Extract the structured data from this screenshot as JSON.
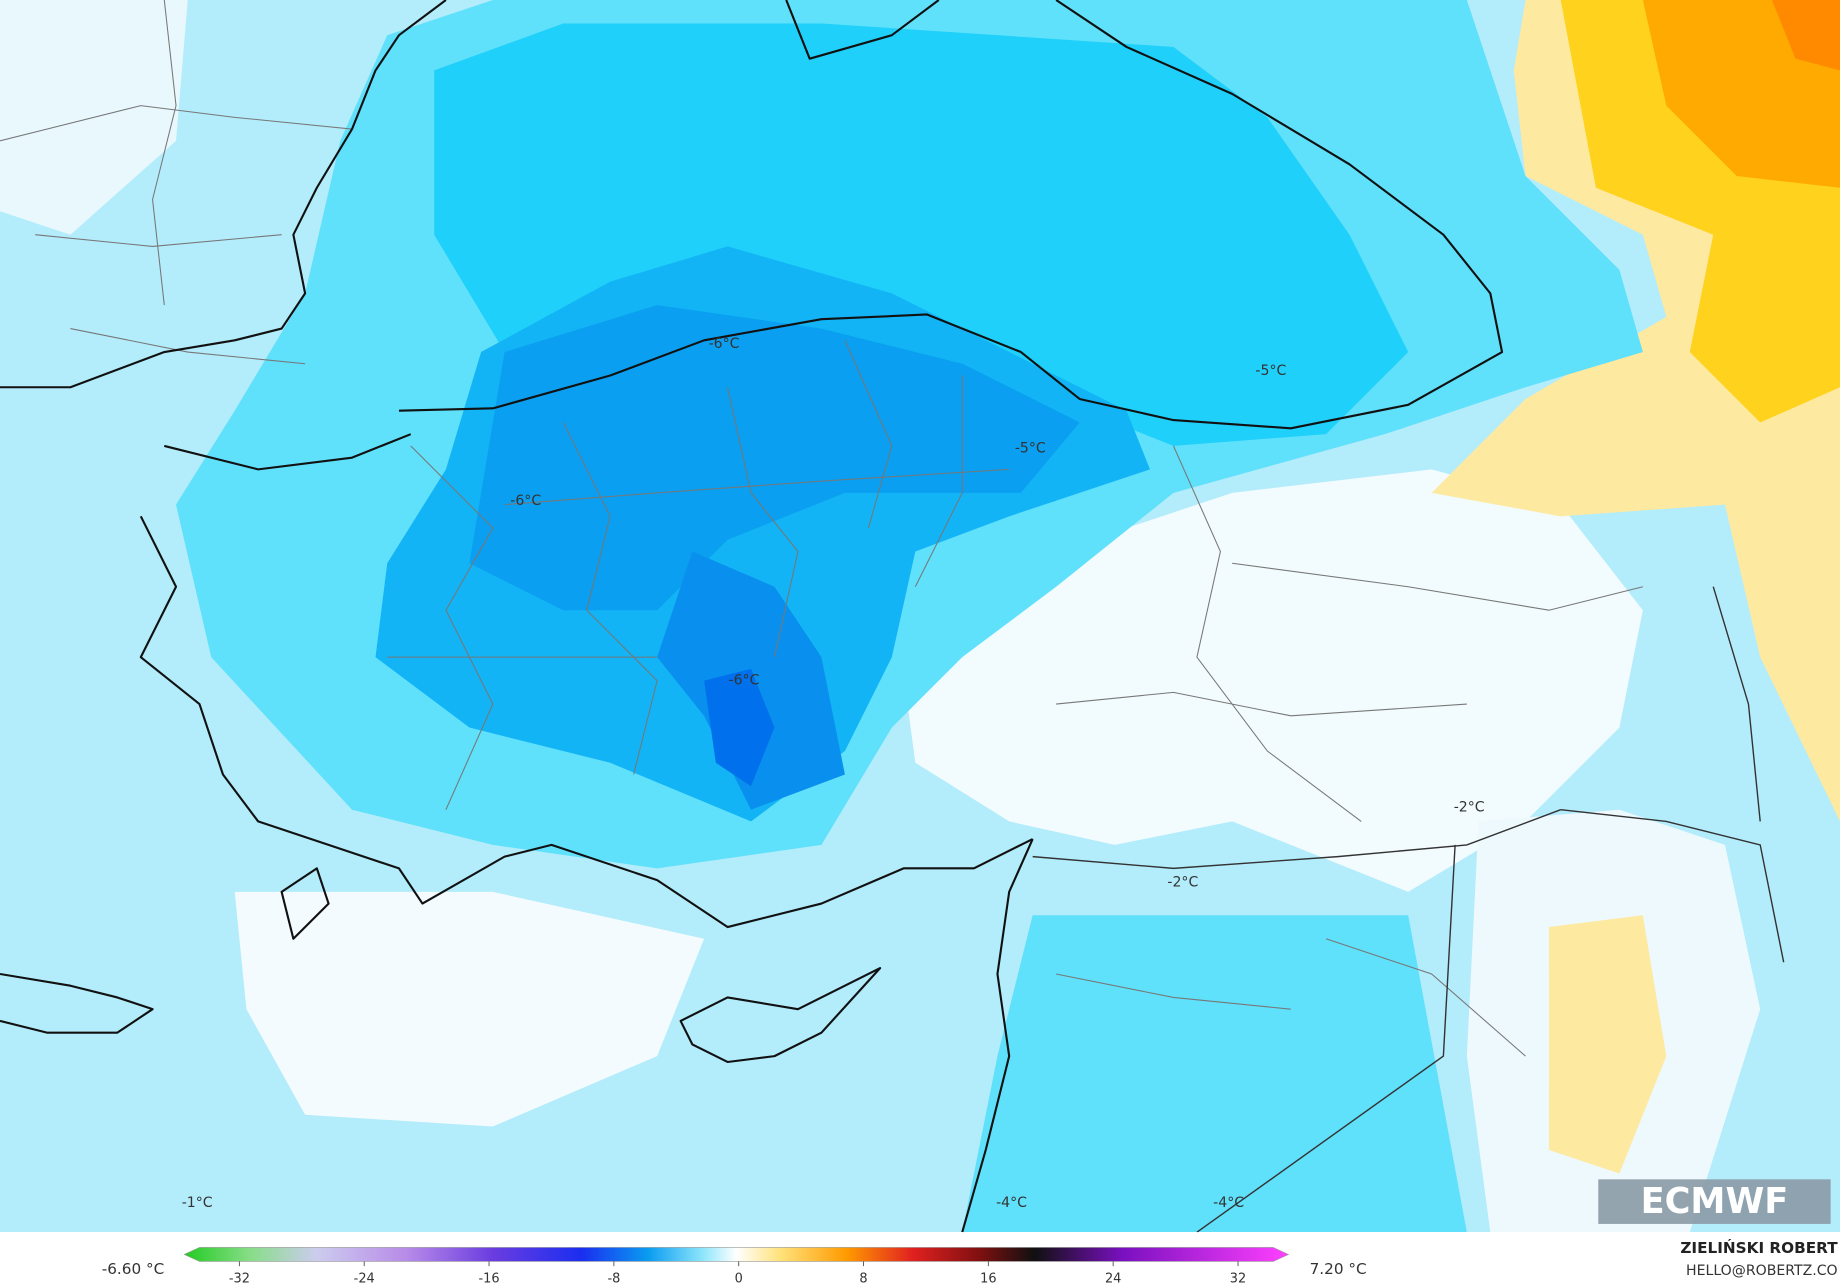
{
  "map": {
    "labels": [
      "-6°C",
      "-5°C",
      "-5°C",
      "-6°C",
      "-6°C",
      "-2°C",
      "-2°C",
      "-1°C",
      "-4°C",
      "-4°C"
    ]
  },
  "colorbar": {
    "min_label": "-6.60 °C",
    "max_label": "7.20 °C",
    "ticks": [
      -32,
      -24,
      -16,
      -8,
      0,
      8,
      16,
      24,
      32
    ]
  },
  "branding": {
    "logo": "ECMWF",
    "author": "ZIELIŃSKI ROBERT",
    "contact": "HELLO@ROBERTZ.CO"
  }
}
